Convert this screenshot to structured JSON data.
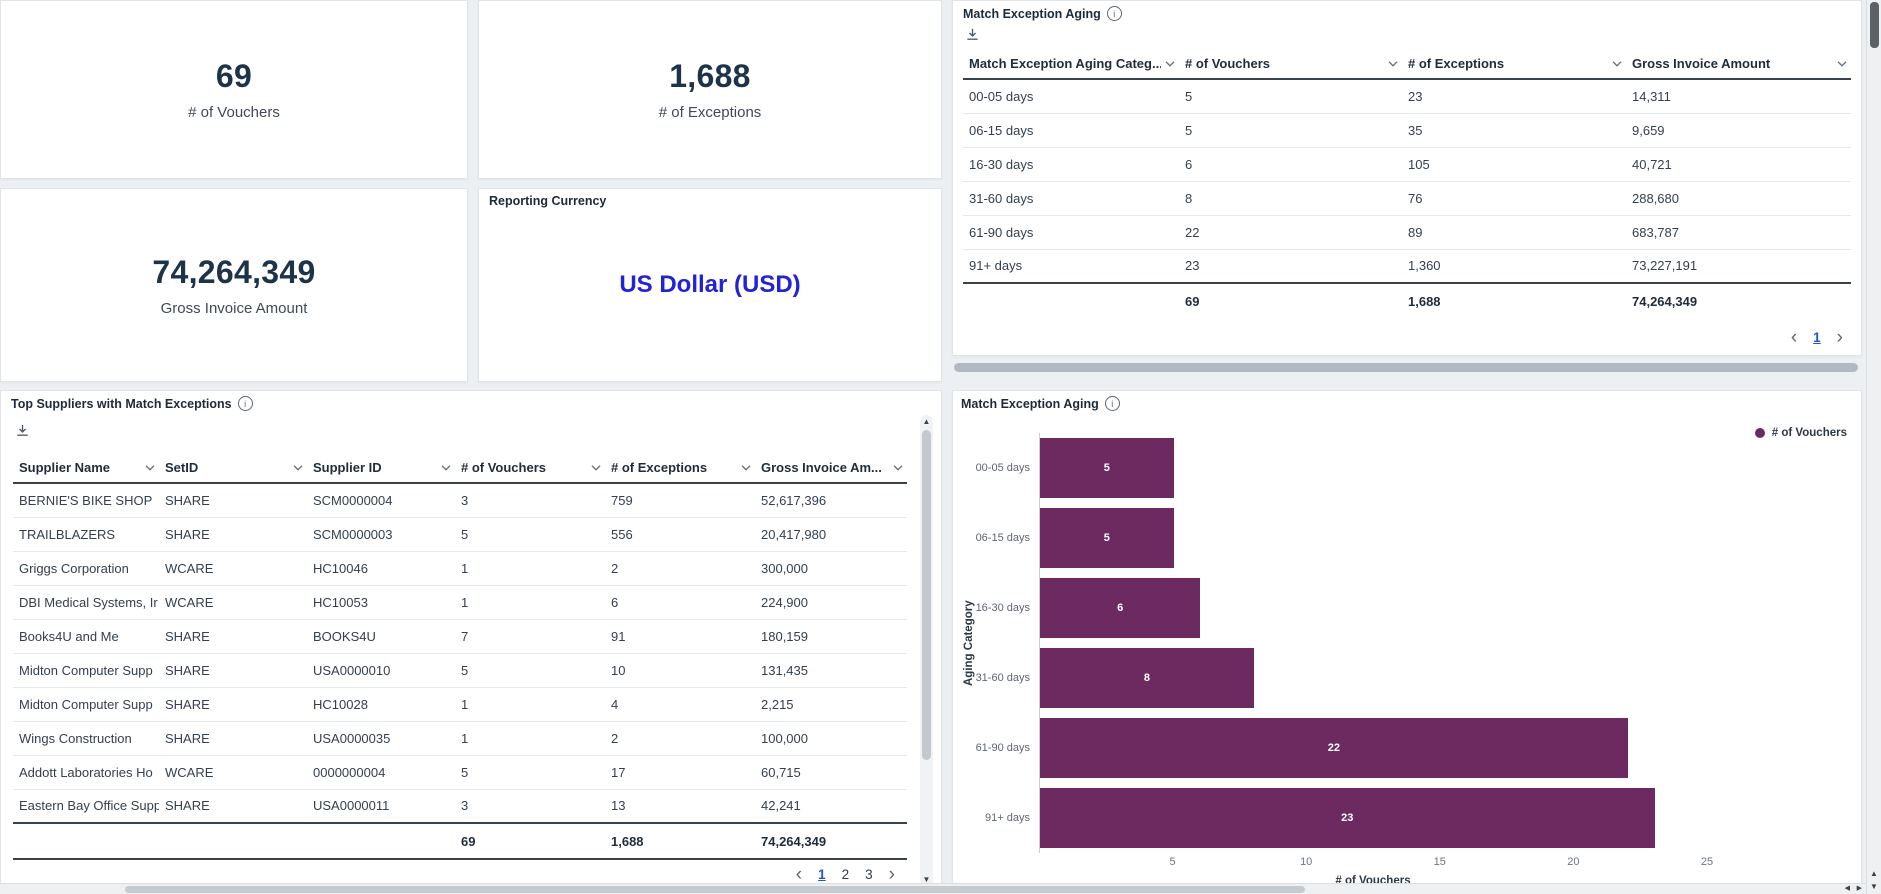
{
  "colors": {
    "currency_blue": "#2222d6",
    "bar_purple": "#6c2a60",
    "active_page_blue": "#2255cc",
    "kpi_text": "#1d3349"
  },
  "kpis": [
    {
      "value": "69",
      "label": "# of Vouchers"
    },
    {
      "value": "1,688",
      "label": "# of Exceptions"
    },
    {
      "value": "74,264,349",
      "label": "Gross Invoice Amount"
    }
  ],
  "reporting_currency": {
    "title": "Reporting Currency",
    "value": "US Dollar (USD)"
  },
  "aging_table": {
    "title": "Match Exception Aging",
    "columns": [
      "Match Exception Aging Categ...",
      "# of Vouchers",
      "# of Exceptions",
      "Gross Invoice Amount"
    ],
    "rows": [
      [
        "00-05 days",
        "5",
        "23",
        "14,311"
      ],
      [
        "06-15 days",
        "5",
        "35",
        "9,659"
      ],
      [
        "16-30 days",
        "6",
        "105",
        "40,721"
      ],
      [
        "31-60 days",
        "8",
        "76",
        "288,680"
      ],
      [
        "61-90 days",
        "22",
        "89",
        "683,787"
      ],
      [
        "91+ days",
        "23",
        "1,360",
        "73,227,191"
      ]
    ],
    "totals": [
      "",
      "69",
      "1,688",
      "74,264,349"
    ],
    "pagination": {
      "pages": [
        "1"
      ],
      "current": "1"
    }
  },
  "suppliers_table": {
    "title": "Top Suppliers with Match Exceptions",
    "columns": [
      "Supplier Name",
      "SetID",
      "Supplier ID",
      "# of Vouchers",
      "# of Exceptions",
      "Gross Invoice Am..."
    ],
    "rows": [
      [
        "BERNIE'S BIKE SHOP",
        "SHARE",
        "SCM0000004",
        "3",
        "759",
        "52,617,396"
      ],
      [
        "TRAILBLAZERS",
        "SHARE",
        "SCM0000003",
        "5",
        "556",
        "20,417,980"
      ],
      [
        "Griggs Corporation",
        "WCARE",
        "HC10046",
        "1",
        "2",
        "300,000"
      ],
      [
        "DBI Medical Systems, Ir",
        "WCARE",
        "HC10053",
        "1",
        "6",
        "224,900"
      ],
      [
        "Books4U and Me",
        "SHARE",
        "BOOKS4U",
        "7",
        "91",
        "180,159"
      ],
      [
        "Midton Computer Supp",
        "SHARE",
        "USA0000010",
        "5",
        "10",
        "131,435"
      ],
      [
        "Midton Computer Supp",
        "SHARE",
        "HC10028",
        "1",
        "4",
        "2,215"
      ],
      [
        "Wings Construction",
        "SHARE",
        "USA0000035",
        "1",
        "2",
        "100,000"
      ],
      [
        "Addott Laboratories Ho",
        "WCARE",
        "0000000004",
        "5",
        "17",
        "60,715"
      ],
      [
        "Eastern Bay Office Supp",
        "SHARE",
        "USA0000011",
        "3",
        "13",
        "42,241"
      ]
    ],
    "totals": [
      "",
      "",
      "",
      "69",
      "1,688",
      "74,264,349"
    ],
    "pagination": {
      "pages": [
        "1",
        "2",
        "3"
      ],
      "current": "1"
    }
  },
  "chart_data": {
    "type": "bar",
    "orientation": "horizontal",
    "title": "Match Exception Aging",
    "categories": [
      "00-05 days",
      "06-15 days",
      "16-30 days",
      "31-60 days",
      "61-90 days",
      "91+ days"
    ],
    "series": [
      {
        "name": "# of Vouchers",
        "values": [
          5,
          5,
          6,
          8,
          22,
          23
        ]
      }
    ],
    "xlabel": "# of Vouchers",
    "ylabel": "Aging Category",
    "xlim": [
      0,
      25
    ],
    "xticks": [
      5,
      10,
      15,
      20,
      25
    ],
    "legend_position": "top-right",
    "grid": false,
    "bar_color": "#6c2a60"
  }
}
